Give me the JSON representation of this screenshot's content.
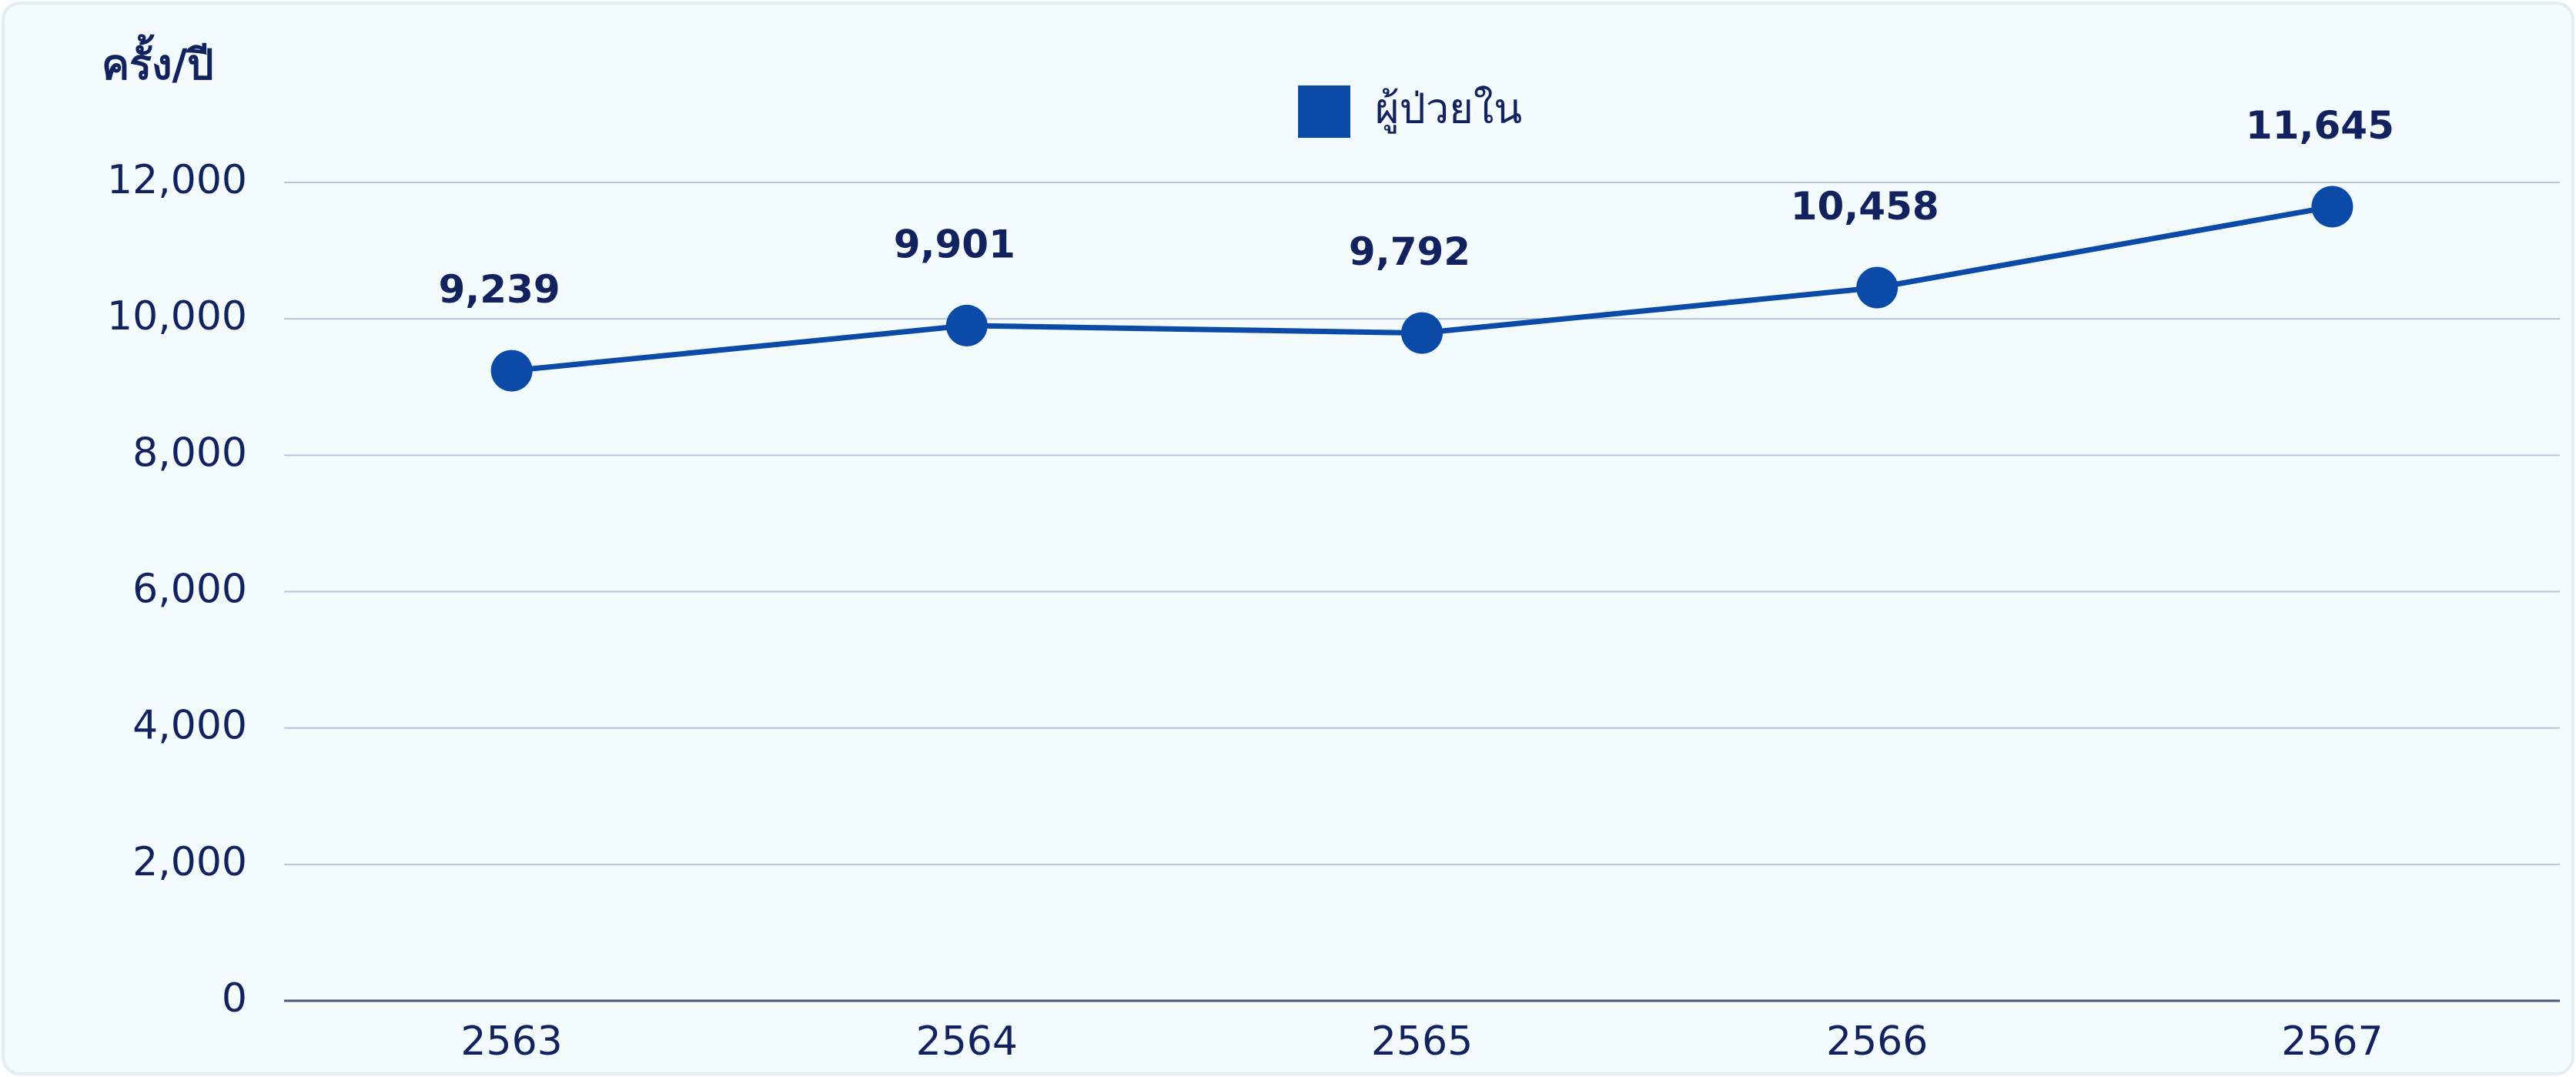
{
  "chart_data": {
    "type": "line",
    "y_label": "ครั้ง/ปี",
    "categories": [
      "2563",
      "2564",
      "2565",
      "2566",
      "2567"
    ],
    "series": [
      {
        "name": "ผู้ป่วยใน",
        "color": "#0b4aa6",
        "values": [
          9239,
          9901,
          9792,
          10458,
          11645
        ],
        "value_labels": [
          "9,239",
          "9,901",
          "9,792",
          "10,458",
          "11,645"
        ]
      }
    ],
    "ylim": [
      0,
      12000
    ],
    "yticks": [
      0,
      {
        "value": 2000,
        "label": "2,000"
      },
      {
        "value": 4000,
        "label": "4,000"
      },
      {
        "value": 6000,
        "label": "6,000"
      },
      {
        "value": 8000,
        "label": "8,000"
      },
      {
        "value": 10000,
        "label": "10,000"
      },
      {
        "value": 12000,
        "label": "12,000"
      }
    ],
    "grid": true,
    "legend": "top"
  }
}
